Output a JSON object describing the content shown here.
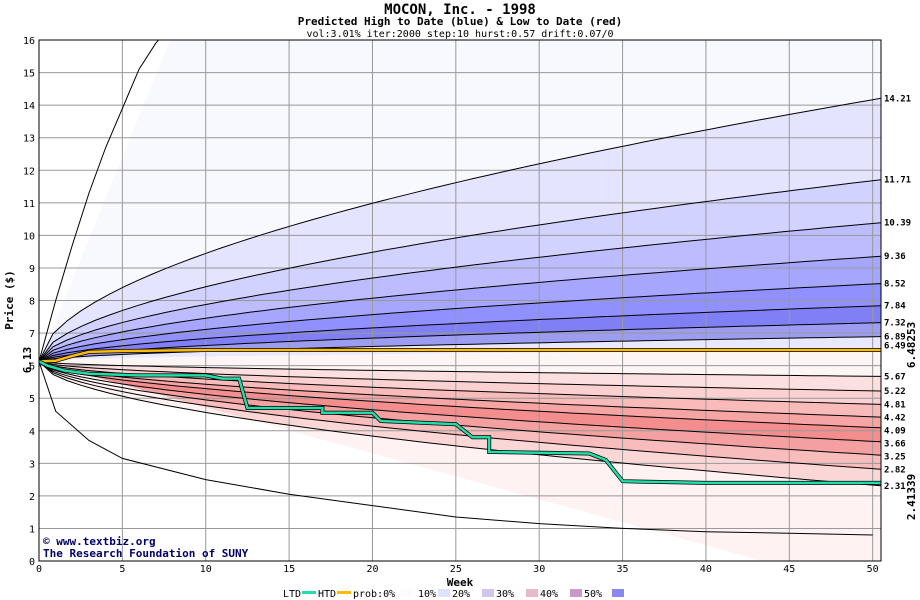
{
  "header": {
    "title": "MOCON, Inc. - 1998",
    "subtitle": "Predicted High to Date (blue) &  Low to Date (red)",
    "params": "vol:3.01% iter:2000 step:10 hurst:0.57 drift:0.07/0"
  },
  "credit": {
    "url": "www.textbiz.org",
    "org": "The Research Foundation of SUNY"
  },
  "legend": {
    "ltd": "LTD",
    "htd": "HTD",
    "prob": "prob:0%",
    "p10": "10%",
    "p20": "20%",
    "p30": "30%",
    "p40": "40%",
    "p50": "50%"
  },
  "colors": {
    "htd_line": "#ffbb00",
    "ltd_line": "#22ddaa",
    "blue_band": "#6666ff",
    "red_band": "#ff6666",
    "start_label": "#005533",
    "htd_label": "#886600",
    "ltd_label": "#008866"
  },
  "chart_data": {
    "type": "area",
    "title": "MOCON, Inc. - 1998",
    "xlabel": "Week",
    "ylabel": "Price ($)",
    "xlim": [
      0,
      50.5
    ],
    "ylim": [
      0,
      16
    ],
    "x_ticks": [
      0,
      5,
      10,
      15,
      20,
      25,
      30,
      35,
      40,
      45,
      50
    ],
    "y_ticks": [
      0,
      1,
      2,
      3,
      4,
      5,
      6,
      7,
      8,
      9,
      10,
      11,
      12,
      13,
      14,
      15,
      16
    ],
    "grid": true,
    "start_price": "6.13",
    "upper_band_ends": [
      14.21,
      11.71,
      10.39,
      9.36,
      8.52,
      7.84,
      7.32,
      6.89
    ],
    "upper_band_labels": [
      "14.21",
      "11.71",
      "10.39",
      "9.36",
      "8.52",
      "7.84",
      "7.32",
      "6.89"
    ],
    "lower_band_ends": [
      5.67,
      5.22,
      4.81,
      4.42,
      4.09,
      3.66,
      3.25,
      2.82,
      2.31
    ],
    "lower_band_labels": [
      "5.67",
      "5.22",
      "4.81",
      "4.42",
      "4.09",
      "3.66",
      "3.25",
      "2.82",
      "2.31"
    ],
    "mid_label": "6.49",
    "outer_upper_curve": [
      [
        0,
        6.13
      ],
      [
        1,
        8
      ],
      [
        2,
        9.7
      ],
      [
        3,
        11.3
      ],
      [
        4,
        12.7
      ],
      [
        5,
        13.9
      ],
      [
        6,
        15.1
      ],
      [
        7,
        15.9
      ],
      [
        8,
        16.5
      ]
    ],
    "outer_lower_curve": [
      [
        0,
        6.13
      ],
      [
        1,
        4.6
      ],
      [
        3,
        3.7
      ],
      [
        5,
        3.15
      ],
      [
        10,
        2.5
      ],
      [
        15,
        2.05
      ],
      [
        20,
        1.7
      ],
      [
        25,
        1.35
      ],
      [
        30,
        1.15
      ],
      [
        35,
        1.0
      ],
      [
        40,
        0.9
      ],
      [
        45,
        0.85
      ],
      [
        50,
        0.8
      ]
    ],
    "series": [
      {
        "name": "HTD",
        "final_value": "6.48253",
        "points": [
          [
            0,
            6.13
          ],
          [
            1,
            6.15
          ],
          [
            2,
            6.3
          ],
          [
            3,
            6.42
          ],
          [
            5,
            6.45
          ],
          [
            10,
            6.48
          ],
          [
            20,
            6.48
          ],
          [
            30,
            6.48
          ],
          [
            50.5,
            6.48
          ]
        ]
      },
      {
        "name": "LTD",
        "final_value": "2.41339",
        "points": [
          [
            0,
            6.13
          ],
          [
            0.5,
            6.0
          ],
          [
            1.5,
            5.85
          ],
          [
            3,
            5.75
          ],
          [
            6,
            5.7
          ],
          [
            10,
            5.7
          ],
          [
            11,
            5.6
          ],
          [
            12,
            5.6
          ],
          [
            12.5,
            4.7
          ],
          [
            17,
            4.7
          ],
          [
            17,
            4.55
          ],
          [
            20,
            4.55
          ],
          [
            20.5,
            4.3
          ],
          [
            25,
            4.2
          ],
          [
            26,
            3.8
          ],
          [
            27,
            3.8
          ],
          [
            27,
            3.35
          ],
          [
            33,
            3.3
          ],
          [
            34,
            3.1
          ],
          [
            35,
            2.45
          ],
          [
            40,
            2.4
          ],
          [
            50.5,
            2.4
          ]
        ]
      }
    ]
  }
}
